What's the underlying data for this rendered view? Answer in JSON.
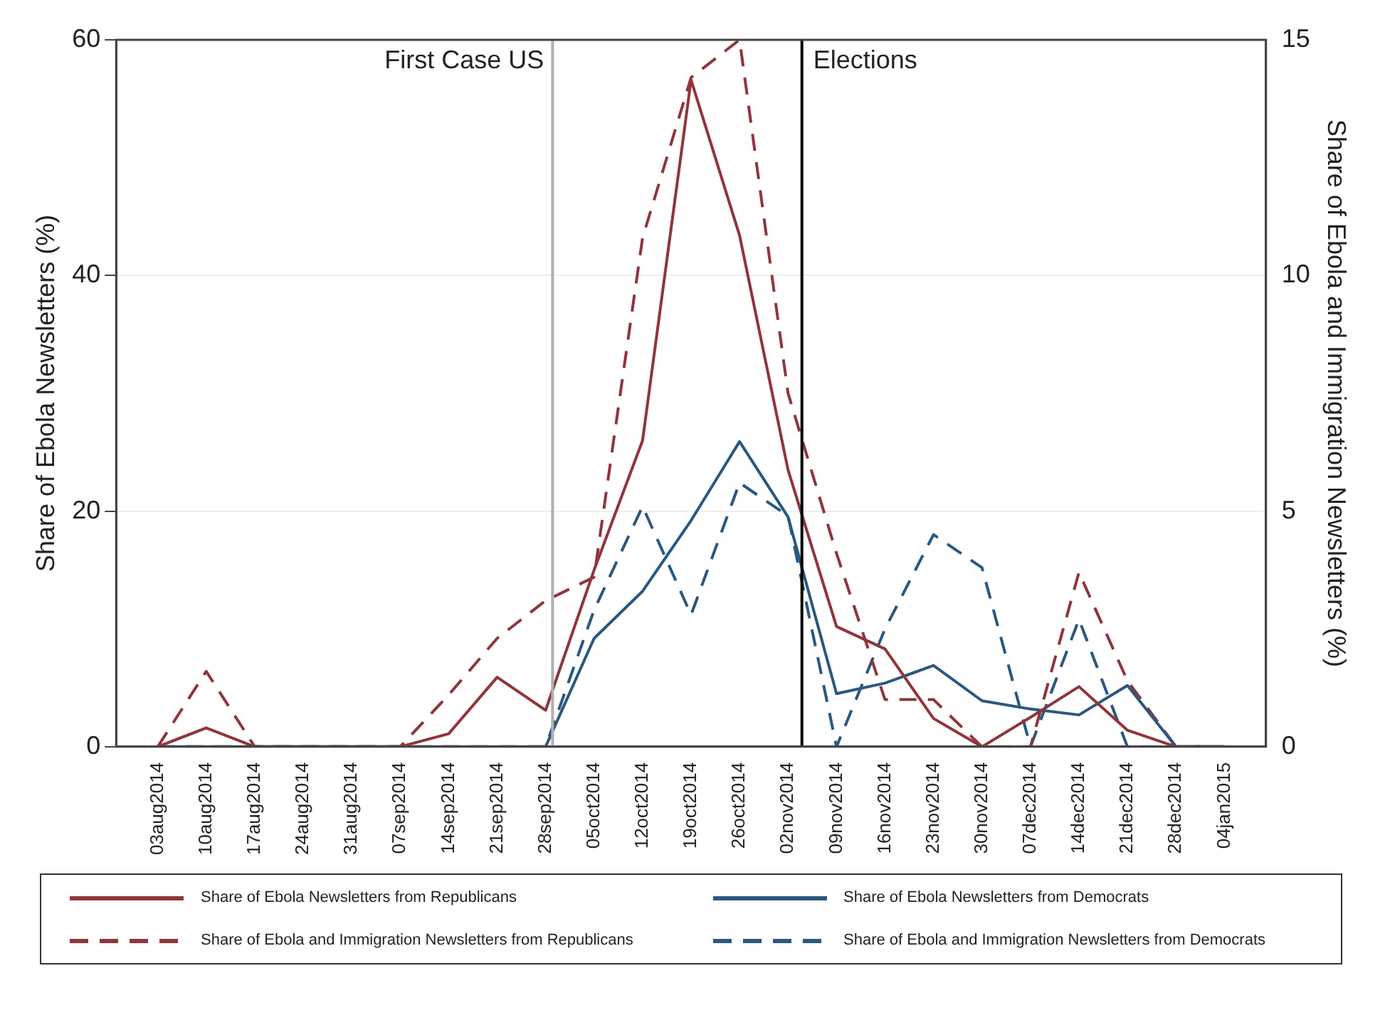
{
  "chart_data": {
    "type": "line",
    "ylabel": "Share of Ebola Newsletters (%)",
    "y2label": "Share of Ebola and Immigration Newsletters (%)",
    "x": [
      "2014-08-03",
      "2014-08-10",
      "2014-08-17",
      "2014-08-24",
      "2014-08-31",
      "2014-09-07",
      "2014-09-14",
      "2014-09-21",
      "2014-09-28",
      "2014-10-05",
      "2014-10-12",
      "2014-10-19",
      "2014-10-26",
      "2014-11-02",
      "2014-11-09",
      "2014-11-16",
      "2014-11-23",
      "2014-11-30",
      "2014-12-07",
      "2014-12-14",
      "2014-12-21",
      "2014-12-28",
      "2015-01-04"
    ],
    "series": [
      {
        "name": "Share of Ebola Newsletters from Republicans",
        "color": "#90353b",
        "line_style": "solid",
        "values": [
          0,
          1.6,
          0,
          0,
          0,
          0,
          1.1,
          5.9,
          3.1,
          15,
          26,
          56.6,
          43.4,
          23.5,
          10.2,
          8.3,
          2.4,
          0,
          2.5,
          5.1,
          1.4,
          0,
          0
        ]
      },
      {
        "name": "Share of Ebola Newsletters from Democrats",
        "color": "#2a5880",
        "line_style": "solid",
        "values": [
          0,
          0,
          0,
          0,
          0,
          0,
          0,
          0,
          0,
          9.2,
          13.2,
          19.2,
          25.9,
          19.5,
          4.5,
          5.4,
          6.9,
          3.9,
          3.2,
          2.7,
          5.2,
          0,
          0
        ]
      },
      {
        "name": "Share of Ebola and Immigration Newsletters from Republicans",
        "color": "#90353b",
        "line_style": "dashed",
        "axis": "y2",
        "values": [
          0,
          1.6,
          0,
          0,
          0,
          0,
          1.1,
          2.3,
          3.1,
          3.6,
          10.8,
          14.2,
          15,
          7.5,
          4.1,
          1,
          1,
          0,
          0,
          3.7,
          1.4,
          0,
          0
        ]
      },
      {
        "name": "Share of Ebola and Immigration Newsletters from Democrats",
        "color": "#2a5880",
        "line_style": "dashed",
        "axis": "y2",
        "values": [
          0,
          0,
          0,
          0,
          0,
          0,
          0,
          0,
          0,
          2.9,
          5.1,
          2.8,
          5.6,
          4.9,
          0,
          2.5,
          4.5,
          3.8,
          0,
          2.7,
          0,
          0,
          0
        ]
      }
    ],
    "xlim": [
      "2014-07-28",
      "2015-01-10"
    ],
    "xticks": [
      {
        "value": "2014-08-03",
        "label": "03aug2014"
      },
      {
        "value": "2014-08-10",
        "label": "10aug2014"
      },
      {
        "value": "2014-08-17",
        "label": "17aug2014"
      },
      {
        "value": "2014-08-24",
        "label": "24aug2014"
      },
      {
        "value": "2014-08-31",
        "label": "31aug2014"
      },
      {
        "value": "2014-09-07",
        "label": "07sep2014"
      },
      {
        "value": "2014-09-14",
        "label": "14sep2014"
      },
      {
        "value": "2014-09-21",
        "label": "21sep2014"
      },
      {
        "value": "2014-09-28",
        "label": "28sep2014"
      },
      {
        "value": "2014-10-05",
        "label": "05oct2014"
      },
      {
        "value": "2014-10-12",
        "label": "12oct2014"
      },
      {
        "value": "2014-10-19",
        "label": "19oct2014"
      },
      {
        "value": "2014-10-26",
        "label": "26oct2014"
      },
      {
        "value": "2014-11-02",
        "label": "02nov2014"
      },
      {
        "value": "2014-11-09",
        "label": "09nov2014"
      },
      {
        "value": "2014-11-16",
        "label": "16nov2014"
      },
      {
        "value": "2014-11-23",
        "label": "23nov2014"
      },
      {
        "value": "2014-11-30",
        "label": "30nov2014"
      },
      {
        "value": "2014-12-07",
        "label": "07dec2014"
      },
      {
        "value": "2014-12-14",
        "label": "14dec2014"
      },
      {
        "value": "2014-12-21",
        "label": "21dec2014"
      },
      {
        "value": "2014-12-28",
        "label": "28dec2014"
      },
      {
        "value": "2015-01-04",
        "label": "04jan2015"
      }
    ],
    "ylim": [
      0,
      60
    ],
    "yticks": [
      0,
      20,
      40,
      60
    ],
    "y2lim": [
      0,
      15
    ],
    "y2ticks": [
      0,
      5,
      10,
      15
    ],
    "ref_lines": [
      {
        "axis": "x",
        "value": "2014-09-29",
        "label": "First Case US",
        "color": "#b0b0b0"
      },
      {
        "axis": "x",
        "value": "2014-11-04",
        "label": "Elections",
        "color": "#000000"
      }
    ],
    "grid": "y",
    "legend": "bottom",
    "marker": "none"
  }
}
